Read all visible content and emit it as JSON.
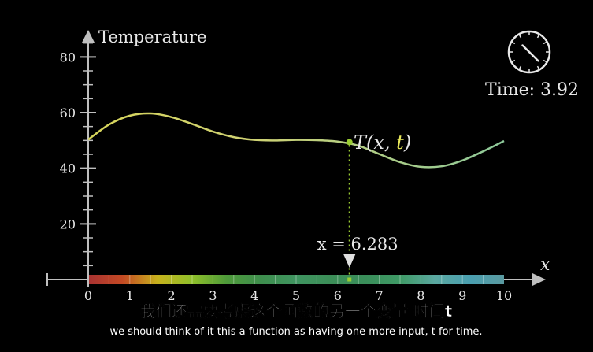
{
  "chart_data": {
    "type": "line",
    "title": "",
    "ylabel": "Temperature",
    "xlabel": "x",
    "xlim": [
      0,
      10
    ],
    "ylim": [
      0,
      90
    ],
    "x_ticks": [
      "1",
      "2",
      "3",
      "4",
      "5",
      "6",
      "7",
      "8",
      "9",
      "10"
    ],
    "y_ticks": [
      "20",
      "40",
      "60",
      "80"
    ],
    "x_tick_values": [
      1,
      2,
      3,
      4,
      5,
      6,
      7,
      8,
      9,
      10
    ],
    "y_tick_values": [
      20,
      40,
      60,
      80
    ],
    "series": [
      {
        "x": [
          0,
          0.5,
          1,
          1.5,
          2,
          2.5,
          3,
          3.5,
          4,
          4.5,
          5,
          5.5,
          6,
          6.5,
          7,
          7.5,
          8,
          8.5,
          9,
          9.5,
          10
        ],
        "y": [
          50.3,
          55.7,
          58.9,
          59.7,
          58.4,
          55.9,
          53.2,
          51.2,
          50.2,
          50.0,
          50.2,
          50.1,
          49.6,
          48.1,
          45.1,
          42.2,
          40.5,
          40.7,
          42.8,
          46.1,
          49.8
        ]
      }
    ],
    "color_low": "#2e8b57",
    "color_high": "#e8e85a",
    "function_label": {
      "prefix": "T(x, ",
      "var": "t",
      "suffix": ")"
    },
    "marker": {
      "x": 6.283,
      "y": 49.4,
      "label": "x = 6.283",
      "color": "#9acd32"
    },
    "heat_bar_colors": [
      "#a83232",
      "#c44a24",
      "#c7b21d",
      "#8fbf2a",
      "#4e9a3a",
      "#3e8e4e",
      "#3f9460",
      "#3c8e58",
      "#3a8e5a",
      "#3f9a66",
      "#5ba8a0",
      "#4a9fb0",
      "#5a9aa0"
    ]
  },
  "clock": {
    "label": "Time: 3.92",
    "time": 3.92
  },
  "subtitle": {
    "cn": "我们还需要考虑这个函数的另一个变量 时间t",
    "en": "we should think of it this a function as having one more input, t for time."
  }
}
